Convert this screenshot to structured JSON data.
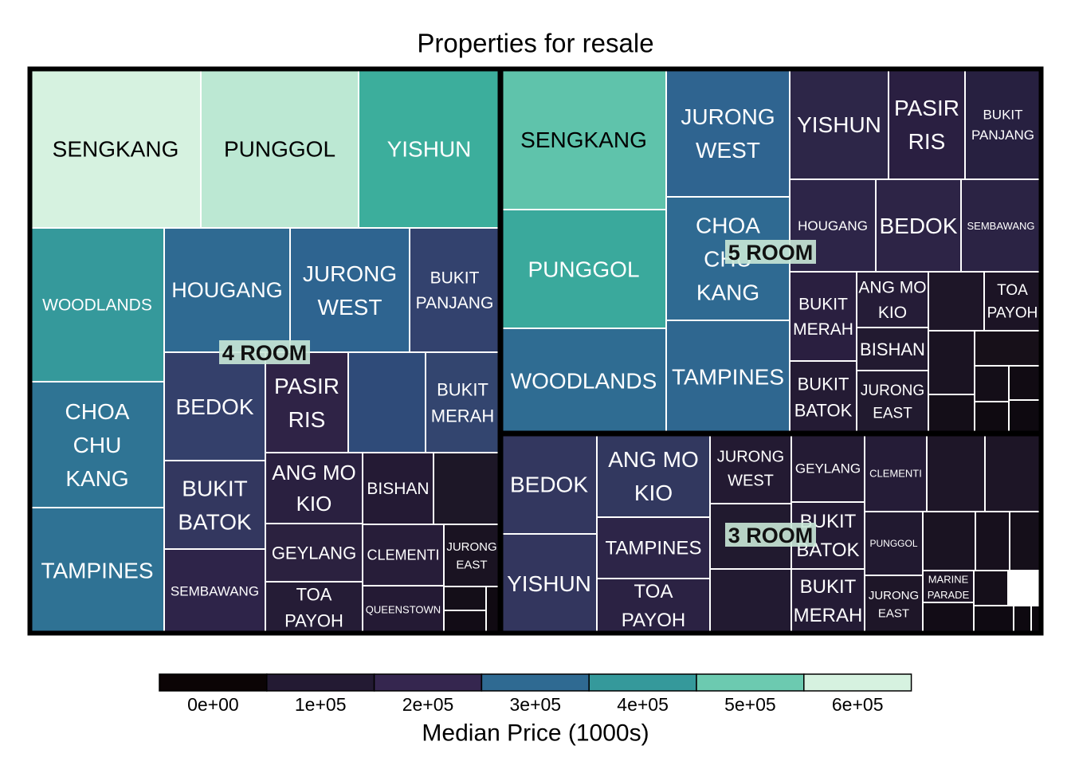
{
  "chart_data": {
    "type": "treemap",
    "title": "Properties for resale",
    "legend": {
      "title": "Median Price (1000s)",
      "placement": "bottom",
      "breaks": [
        "0e+00",
        "1e+05",
        "2e+05",
        "3e+05",
        "4e+05",
        "5e+05",
        "6e+05"
      ],
      "colors": [
        "#0b0405",
        "#231a33",
        "#35264f",
        "#2f6a92",
        "#35999b",
        "#6ccab0",
        "#d6f2e0"
      ]
    },
    "groups": [
      {
        "name": "4 ROOM",
        "tiles": [
          {
            "label": "SENGKANG",
            "color": "#d6f2e0"
          },
          {
            "label": "PUNGGOL",
            "color": "#bce8d3"
          },
          {
            "label": "YISHUN",
            "color": "#3cae9c"
          },
          {
            "label": "WOODLANDS",
            "color": "#35999b"
          },
          {
            "label": "HOUGANG",
            "color": "#2f6a92"
          },
          {
            "label": "JURONG WEST",
            "color": "#2e6490"
          },
          {
            "label": "BUKIT PANJANG",
            "color": "#33426e"
          },
          {
            "label": "CHOA CHU KANG",
            "color": "#2f7494"
          },
          {
            "label": "BEDOK",
            "color": "#34406b"
          },
          {
            "label": "PASIR RIS",
            "color": "#2f2346"
          },
          {
            "label": "",
            "color": "#2f4b79"
          },
          {
            "label": "BUKIT MERAH",
            "color": "#33456f"
          },
          {
            "label": "TAMPINES",
            "color": "#2f7294"
          },
          {
            "label": "BUKIT BATOK",
            "color": "#33375f"
          },
          {
            "label": "ANG MO KIO",
            "color": "#2a2040"
          },
          {
            "label": "BISHAN",
            "color": "#241a34"
          },
          {
            "label": "",
            "color": "#1d1727"
          },
          {
            "label": "GEYLANG",
            "color": "#2b213f"
          },
          {
            "label": "CLEMENTI",
            "color": "#271d39"
          },
          {
            "label": "JURONG EAST",
            "color": "#1a1322"
          },
          {
            "label": "SEMBAWANG",
            "color": "#2e2449"
          },
          {
            "label": "TOA PAYOH",
            "color": "#251c36"
          },
          {
            "label": "QUEENSTOWN",
            "color": "#241a34"
          },
          {
            "label": "",
            "color": "#140e18"
          },
          {
            "label": "",
            "color": "#120c16"
          },
          {
            "label": "",
            "color": "#100a12"
          }
        ]
      },
      {
        "name": "5 ROOM",
        "tiles": [
          {
            "label": "SENGKANG",
            "color": "#5fc3ab"
          },
          {
            "label": "JURONG WEST",
            "color": "#2f6490"
          },
          {
            "label": "YISHUN",
            "color": "#2d2648"
          },
          {
            "label": "PASIR RIS",
            "color": "#2a1f41"
          },
          {
            "label": "BUKIT PANJANG",
            "color": "#272040"
          },
          {
            "label": "PUNGGOL",
            "color": "#3aa99c"
          },
          {
            "label": "CHOA CHU KANG",
            "color": "#2f6a92"
          },
          {
            "label": "HOUGANG",
            "color": "#2d2548"
          },
          {
            "label": "BEDOK",
            "color": "#2d2446"
          },
          {
            "label": "SEMBAWANG",
            "color": "#2b2344"
          },
          {
            "label": "WOODLANDS",
            "color": "#2f6c92"
          },
          {
            "label": "TAMPINES",
            "color": "#2f6790"
          },
          {
            "label": "BUKIT MERAH",
            "color": "#2a1f40"
          },
          {
            "label": "ANG MO KIO",
            "color": "#251c37"
          },
          {
            "label": "",
            "color": "#1e1628"
          },
          {
            "label": "TOA PAYOH",
            "color": "#1c1425"
          },
          {
            "label": "BISHAN",
            "color": "#221a30"
          },
          {
            "label": "",
            "color": "#1a1322"
          },
          {
            "label": "",
            "color": "#171019"
          },
          {
            "label": "BUKIT BATOK",
            "color": "#241b34"
          },
          {
            "label": "JURONG EAST",
            "color": "#211a2f"
          },
          {
            "label": "",
            "color": "#140e18"
          },
          {
            "label": "",
            "color": "#140e18"
          },
          {
            "label": "",
            "color": "#110b13"
          },
          {
            "label": "",
            "color": "#0f0a11"
          },
          {
            "label": "",
            "color": "#0e0910"
          }
        ]
      },
      {
        "name": "3 ROOM",
        "tiles": [
          {
            "label": "BEDOK",
            "color": "#33375f"
          },
          {
            "label": "ANG MO KIO",
            "color": "#32385f"
          },
          {
            "label": "JURONG WEST",
            "color": "#231a32"
          },
          {
            "label": "GEYLANG",
            "color": "#241b34"
          },
          {
            "label": "CLEMENTI",
            "color": "#251c37"
          },
          {
            "label": "",
            "color": "#1e1628"
          },
          {
            "label": "",
            "color": "#1d1526"
          },
          {
            "label": "YISHUN",
            "color": "#33365e"
          },
          {
            "label": "TAMPINES",
            "color": "#2d2548"
          },
          {
            "label": "",
            "color": "#211a2f"
          },
          {
            "label": "BUKIT BATOK",
            "color": "#241b35"
          },
          {
            "label": "PUNGGOL",
            "color": "#211930"
          },
          {
            "label": "",
            "color": "#1a1322"
          },
          {
            "label": "",
            "color": "#17101d"
          },
          {
            "label": "",
            "color": "#150f1a"
          },
          {
            "label": "TOA PAYOH",
            "color": "#2b2243"
          },
          {
            "label": "",
            "color": "#221a31"
          },
          {
            "label": "BUKIT MERAH",
            "color": "#241b35"
          },
          {
            "label": "JURONG EAST",
            "color": "#1e1628"
          },
          {
            "label": "MARINE PARADE",
            "color": "#1c1425"
          },
          {
            "label": "",
            "color": "#150f1a"
          },
          {
            "label": "",
            "color": "#120c16"
          },
          {
            "label": "",
            "color": "#0f0a12"
          },
          {
            "label": "",
            "color": "#0e0910"
          },
          {
            "label": "",
            "color": "#0d080f"
          }
        ]
      }
    ]
  }
}
